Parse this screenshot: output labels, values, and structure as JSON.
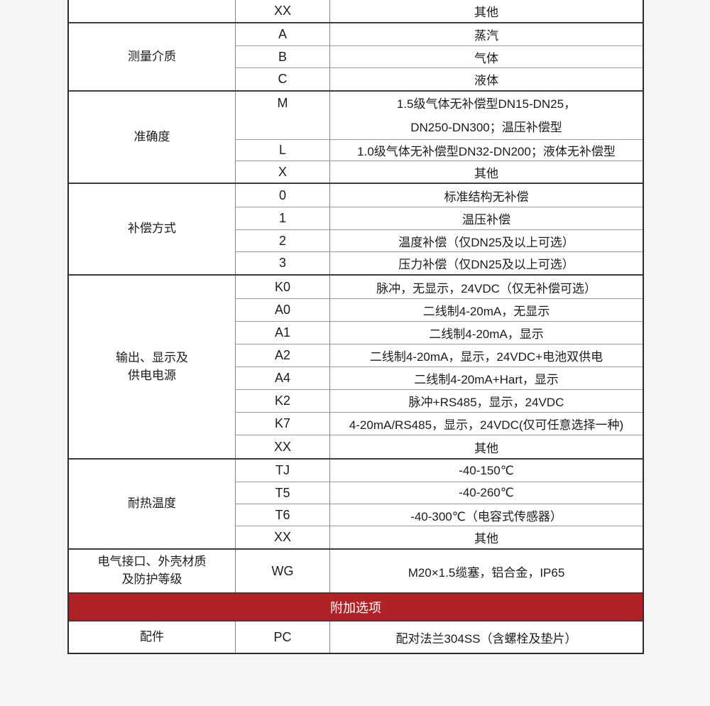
{
  "colors": {
    "banner_background": "#b12227",
    "banner_text": "#ffffff"
  },
  "table": {
    "columns": [
      "category",
      "code",
      "description"
    ],
    "sections": [
      {
        "category": "",
        "rows": [
          {
            "code": "XX",
            "desc": "其他"
          }
        ]
      },
      {
        "category": "测量介质",
        "rows": [
          {
            "code": "A",
            "desc": "蒸汽"
          },
          {
            "code": "B",
            "desc": "气体"
          },
          {
            "code": "C",
            "desc": "液体"
          }
        ]
      },
      {
        "category": "准确度",
        "rows": [
          {
            "code": "M",
            "desc": "1.5级气体无补偿型DN15-DN25，\nDN250-DN300；温压补偿型",
            "two_line": true
          },
          {
            "code": "L",
            "desc": "1.0级气体无补偿型DN32-DN200；液体无补偿型"
          },
          {
            "code": "X",
            "desc": "其他"
          }
        ]
      },
      {
        "category": "补偿方式",
        "rows": [
          {
            "code": "0",
            "desc": "标准结构无补偿"
          },
          {
            "code": "1",
            "desc": "温压补偿"
          },
          {
            "code": "2",
            "desc": "温度补偿（仅DN25及以上可选）"
          },
          {
            "code": "3",
            "desc": "压力补偿（仅DN25及以上可选）"
          }
        ]
      },
      {
        "category": "输出、显示及\n供电电源",
        "rows": [
          {
            "code": "K0",
            "desc": "脉冲，无显示，24VDC（仅无补偿可选）"
          },
          {
            "code": "A0",
            "desc": "二线制4-20mA，无显示"
          },
          {
            "code": "A1",
            "desc": "二线制4-20mA，显示"
          },
          {
            "code": "A2",
            "desc": "二线制4-20mA，显示，24VDC+电池双供电"
          },
          {
            "code": "A4",
            "desc": "二线制4-20mA+Hart，显示"
          },
          {
            "code": "K2",
            "desc": "脉冲+RS485，显示，24VDC"
          },
          {
            "code": "K7",
            "desc": "4-20mA/RS485，显示，24VDC(仅可任意选择一种)"
          },
          {
            "code": "XX",
            "desc": "其他"
          }
        ]
      },
      {
        "category": "耐热温度",
        "rows": [
          {
            "code": "TJ",
            "desc": "-40-150℃"
          },
          {
            "code": "T5",
            "desc": "-40-260℃"
          },
          {
            "code": "T6",
            "desc": "-40-300℃（电容式传感器）"
          },
          {
            "code": "XX",
            "desc": "其他"
          }
        ]
      },
      {
        "category": "电气接口、外壳材质\n及防护等级",
        "rows": [
          {
            "code": "WG",
            "desc": "M20×1.5缆塞，铝合金，IP65"
          }
        ]
      }
    ],
    "banner": "附加选项",
    "sections_after_banner": [
      {
        "category": "配件",
        "rows": [
          {
            "code": "PC",
            "desc": "配对法兰304SS（含螺栓及垫片）"
          }
        ]
      }
    ]
  }
}
